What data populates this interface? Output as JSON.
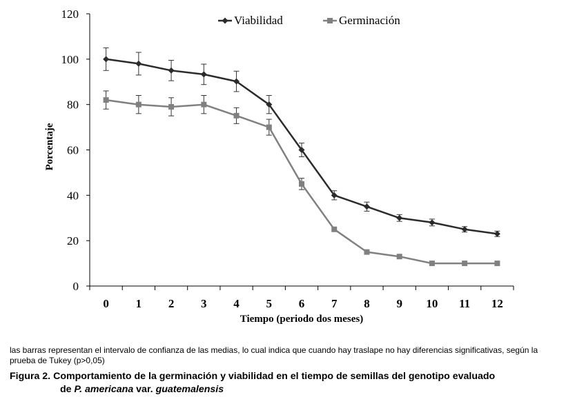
{
  "chart_data": {
    "type": "line",
    "title": "",
    "xlabel": "Tiempo (periodo dos meses)",
    "ylabel": "Porcentaje",
    "x": [
      0,
      1,
      2,
      3,
      4,
      5,
      6,
      7,
      8,
      9,
      10,
      11,
      12
    ],
    "xticks": [
      "0",
      "1",
      "2",
      "3",
      "4",
      "5",
      "6",
      "7",
      "8",
      "9",
      "10",
      "11",
      "12"
    ],
    "ylim": [
      0,
      120
    ],
    "yticks": [
      "0",
      "20",
      "40",
      "60",
      "80",
      "100",
      "120"
    ],
    "grid": false,
    "legend_position": "top",
    "series": [
      {
        "name": "Viabilidad",
        "marker": "diamond",
        "color": "#2b2b2b",
        "values": [
          100,
          98,
          95,
          93.3,
          90.2,
          80,
          60,
          40,
          35,
          30,
          28,
          25,
          23
        ],
        "error": [
          5,
          5,
          4.5,
          4.5,
          4.5,
          4,
          3,
          2,
          2,
          1.5,
          1.5,
          1.2,
          1.2
        ]
      },
      {
        "name": "Germinación",
        "marker": "square",
        "color": "#808080",
        "values": [
          82,
          80,
          79,
          80,
          75.1,
          70,
          45,
          25,
          15,
          13,
          10,
          10,
          10
        ],
        "error": [
          4,
          4,
          4,
          4,
          3.5,
          3.5,
          2.5,
          0,
          0,
          0,
          0,
          0,
          0
        ]
      }
    ]
  },
  "caption": {
    "note": "las barras representan el intervalo de confianza de las medias, lo cual indica que cuando hay traslape no hay diferencias significativas, según la prueba de Tukey (p>0,05)",
    "figure_label": "Figura 2. Comportamiento de la germinación y viabilidad en el tiempo de semillas del genotipo evaluado",
    "line2_prefix": "de ",
    "species": "P. americana",
    "var_text": " var. ",
    "variety": "guatemalensis"
  },
  "colors": {
    "axis": "#000000",
    "viabilidad": "#2b2b2b",
    "germinacion": "#808080"
  }
}
